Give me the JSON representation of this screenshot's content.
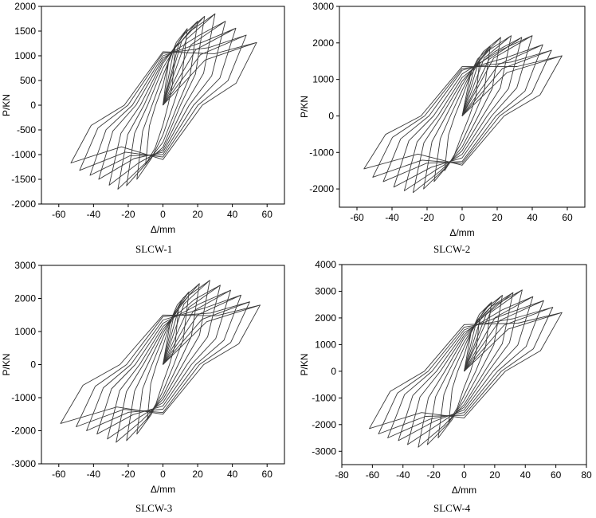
{
  "chart_data": [
    {
      "type": "line",
      "caption": "SLCW-1",
      "xlabel": "Δ/mm",
      "ylabel": "P/KN",
      "xlim": [
        -70,
        70
      ],
      "ylim": [
        -2000,
        2000
      ],
      "xticks": [
        -60,
        -40,
        -20,
        0,
        20,
        40,
        60
      ],
      "yticks": [
        -2000,
        -1500,
        -1000,
        -500,
        0,
        500,
        1000,
        1500,
        2000
      ],
      "series": [
        {
          "loops": [
            {
              "xmax": 7,
              "pmax": 1200,
              "xmin": -10,
              "pmin": -1200,
              "pres": 400,
              "nres": -400
            },
            {
              "xmax": 14,
              "pmax": 1550,
              "xmin": -15,
              "pmin": -1500,
              "pres": 600,
              "nres": -600
            },
            {
              "xmax": 20,
              "pmax": 1700,
              "xmin": -21,
              "pmin": -1630,
              "pres": 750,
              "nres": -750
            },
            {
              "xmax": 24,
              "pmax": 1800,
              "xmin": -26,
              "pmin": -1700,
              "pres": 850,
              "nres": -850
            },
            {
              "xmax": 30,
              "pmax": 1850,
              "xmin": -31,
              "pmin": -1620,
              "pres": 900,
              "nres": -900
            },
            {
              "xmax": 36,
              "pmax": 1700,
              "xmin": -37,
              "pmin": -1500,
              "pres": 950,
              "nres": -950
            },
            {
              "xmax": 42,
              "pmax": 1560,
              "xmin": -42,
              "pmin": -1420,
              "pres": 1000,
              "nres": -1000
            },
            {
              "xmax": 48,
              "pmax": 1420,
              "xmin": -48,
              "pmin": -1320,
              "pres": 1050,
              "nres": -1050
            },
            {
              "xmax": 54,
              "pmax": 1270,
              "xmin": -53,
              "pmin": -1170,
              "pres": 1080,
              "nres": -1100
            }
          ]
        }
      ]
    },
    {
      "type": "line",
      "caption": "SLCW-2",
      "xlabel": "Δ/mm",
      "ylabel": "P/KN",
      "xlim": [
        -70,
        70
      ],
      "ylim": [
        -2500,
        3000
      ],
      "xticks": [
        -60,
        -40,
        -20,
        0,
        20,
        40,
        60
      ],
      "yticks": [
        -2000,
        -1000,
        0,
        1000,
        2000,
        3000
      ],
      "series": [
        {
          "loops": [
            {
              "xmax": 10,
              "pmax": 1500,
              "xmin": -10,
              "pmin": -1500,
              "pres": 500,
              "nres": -500
            },
            {
              "xmax": 16,
              "pmax": 1900,
              "xmin": -16,
              "pmin": -1800,
              "pres": 700,
              "nres": -700
            },
            {
              "xmax": 22,
              "pmax": 2150,
              "xmin": -22,
              "pmin": -2000,
              "pres": 850,
              "nres": -850
            },
            {
              "xmax": 28,
              "pmax": 2200,
              "xmin": -28,
              "pmin": -2100,
              "pres": 950,
              "nres": -950
            },
            {
              "xmax": 34,
              "pmax": 2150,
              "xmin": -33,
              "pmin": -2050,
              "pres": 1050,
              "nres": -1050
            },
            {
              "xmax": 40,
              "pmax": 2200,
              "xmin": -39,
              "pmin": -1950,
              "pres": 1150,
              "nres": -1150
            },
            {
              "xmax": 46,
              "pmax": 1950,
              "xmin": -45,
              "pmin": -1800,
              "pres": 1250,
              "nres": -1250
            },
            {
              "xmax": 51,
              "pmax": 1800,
              "xmin": -51,
              "pmin": -1680,
              "pres": 1300,
              "nres": -1300
            },
            {
              "xmax": 57,
              "pmax": 1650,
              "xmin": -56,
              "pmin": -1450,
              "pres": 1350,
              "nres": -1350
            }
          ]
        }
      ]
    },
    {
      "type": "line",
      "caption": "SLCW-3",
      "xlabel": "Δ/mm",
      "ylabel": "P/KN",
      "xlim": [
        -70,
        70
      ],
      "ylim": [
        -3000,
        3000
      ],
      "xticks": [
        -60,
        -40,
        -20,
        0,
        20,
        40,
        60
      ],
      "yticks": [
        -3000,
        -2000,
        -1000,
        0,
        1000,
        2000,
        3000
      ],
      "series": [
        {
          "loops": [
            {
              "xmax": 9,
              "pmax": 1700,
              "xmin": -9,
              "pmin": -1650,
              "pres": 550,
              "nres": -550
            },
            {
              "xmax": 15,
              "pmax": 2200,
              "xmin": -15,
              "pmin": -2100,
              "pres": 800,
              "nres": -800
            },
            {
              "xmax": 21,
              "pmax": 2450,
              "xmin": -21,
              "pmin": -2300,
              "pres": 950,
              "nres": -950
            },
            {
              "xmax": 27,
              "pmax": 2550,
              "xmin": -27,
              "pmin": -2350,
              "pres": 1050,
              "nres": -1050
            },
            {
              "xmax": 33,
              "pmax": 2400,
              "xmin": -32,
              "pmin": -2250,
              "pres": 1150,
              "nres": -1150
            },
            {
              "xmax": 39,
              "pmax": 2250,
              "xmin": -38,
              "pmin": -2100,
              "pres": 1250,
              "nres": -1250
            },
            {
              "xmax": 45,
              "pmax": 2100,
              "xmin": -44,
              "pmin": -2000,
              "pres": 1350,
              "nres": -1350
            },
            {
              "xmax": 50,
              "pmax": 1900,
              "xmin": -50,
              "pmin": -1880,
              "pres": 1450,
              "nres": -1450
            },
            {
              "xmax": 56,
              "pmax": 1800,
              "xmin": -59,
              "pmin": -1780,
              "pres": 1500,
              "nres": -1500
            }
          ]
        }
      ]
    },
    {
      "type": "line",
      "caption": "SLCW-4",
      "xlabel": "Δ/mm",
      "ylabel": "P/KN",
      "xlim": [
        -80,
        80
      ],
      "ylim": [
        -3500,
        4000
      ],
      "xticks": [
        -80,
        -60,
        -40,
        -20,
        0,
        20,
        40,
        60,
        80
      ],
      "yticks": [
        -3000,
        -2000,
        -1000,
        0,
        1000,
        2000,
        3000,
        4000
      ],
      "series": [
        {
          "loops": [
            {
              "xmax": 10,
              "pmax": 2000,
              "xmin": -10,
              "pmin": -1900,
              "pres": 600,
              "nres": -600
            },
            {
              "xmax": 18,
              "pmax": 2600,
              "xmin": -17,
              "pmin": -2500,
              "pres": 900,
              "nres": -900
            },
            {
              "xmax": 25,
              "pmax": 2850,
              "xmin": -24,
              "pmin": -2750,
              "pres": 1100,
              "nres": -1100
            },
            {
              "xmax": 32,
              "pmax": 2950,
              "xmin": -30,
              "pmin": -2850,
              "pres": 1250,
              "nres": -1250
            },
            {
              "xmax": 38,
              "pmax": 3050,
              "xmin": -37,
              "pmin": -2750,
              "pres": 1350,
              "nres": -1350
            },
            {
              "xmax": 45,
              "pmax": 2800,
              "xmin": -43,
              "pmin": -2600,
              "pres": 1450,
              "nres": -1450
            },
            {
              "xmax": 52,
              "pmax": 2650,
              "xmin": -50,
              "pmin": -2500,
              "pres": 1550,
              "nres": -1550
            },
            {
              "xmax": 58,
              "pmax": 2400,
              "xmin": -56,
              "pmin": -2350,
              "pres": 1650,
              "nres": -1650
            },
            {
              "xmax": 64,
              "pmax": 2200,
              "xmin": -62,
              "pmin": -2150,
              "pres": 1750,
              "nres": -1750
            }
          ]
        }
      ]
    }
  ]
}
